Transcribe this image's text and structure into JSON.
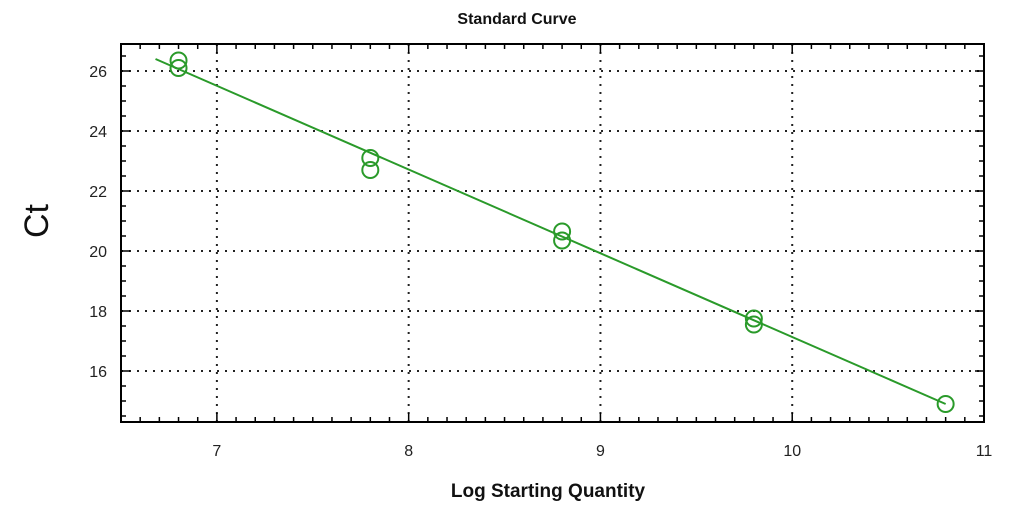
{
  "chart_data": {
    "type": "scatter",
    "title": "Standard Curve",
    "xlabel": "Log Starting Quantity",
    "ylabel": "Ct",
    "xlim": [
      6.5,
      11
    ],
    "ylim": [
      14.3,
      26.9
    ],
    "xticks": [
      7,
      8,
      9,
      10,
      11
    ],
    "yticks": [
      16,
      18,
      20,
      22,
      24,
      26
    ],
    "grid": true,
    "colors": {
      "series": "#2a9a2a"
    },
    "points": [
      {
        "x": 6.8,
        "y": 26.35
      },
      {
        "x": 6.8,
        "y": 26.1
      },
      {
        "x": 7.8,
        "y": 23.1
      },
      {
        "x": 7.8,
        "y": 22.7
      },
      {
        "x": 8.8,
        "y": 20.65
      },
      {
        "x": 8.8,
        "y": 20.35
      },
      {
        "x": 9.8,
        "y": 17.75
      },
      {
        "x": 9.8,
        "y": 17.55
      },
      {
        "x": 10.8,
        "y": 14.9
      }
    ],
    "fit_line": {
      "x": [
        6.68,
        10.8
      ],
      "y": [
        26.4,
        14.9
      ]
    }
  }
}
